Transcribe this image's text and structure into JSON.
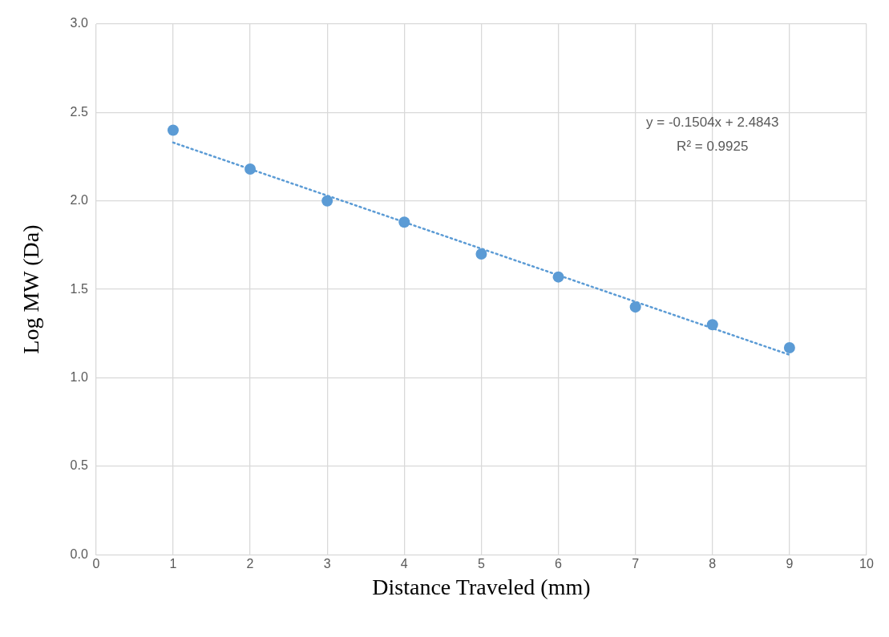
{
  "chart_data": {
    "type": "scatter",
    "xlabel": "Distance Traveled (mm)",
    "ylabel": "Log MW (Da)",
    "x": [
      1,
      2,
      3,
      4,
      5,
      6,
      7,
      8,
      9
    ],
    "series": [
      {
        "color": "#5b9bd5",
        "values": [
          2.4,
          2.18,
          2.0,
          1.88,
          1.7,
          1.57,
          1.4,
          1.3,
          1.17
        ]
      },
      {
        "type": "line",
        "color": "#5b9bd5",
        "x": [
          1,
          9
        ],
        "values": [
          2.33,
          1.13
        ],
        "line_style": "dotted",
        "marker": "none"
      }
    ],
    "annotations": [
      "y = -0.1504x + 2.4843",
      "R² = 0.9925"
    ],
    "xlim": [
      0,
      10
    ],
    "xticks": [
      0,
      1,
      2,
      3,
      4,
      5,
      6,
      7,
      8,
      9,
      10
    ],
    "ylim": [
      0,
      3
    ],
    "yticks": [
      {
        "value": 0,
        "label": "0.0"
      },
      {
        "value": 0.5,
        "label": "0.5"
      },
      {
        "value": 1,
        "label": "1.0"
      },
      {
        "value": 1.5,
        "label": "1.5"
      },
      {
        "value": 2,
        "label": "2.0"
      },
      {
        "value": 2.5,
        "label": "2.5"
      },
      {
        "value": 3,
        "label": "3.0"
      }
    ],
    "grid": true,
    "legend": false,
    "marker": "circle"
  }
}
